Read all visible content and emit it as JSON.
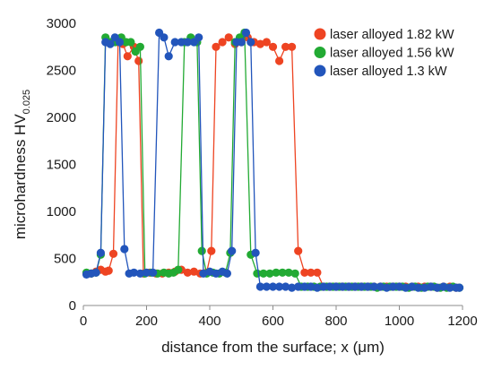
{
  "chart_data": {
    "type": "scatter",
    "connected": true,
    "title": "",
    "xlabel": "distance from the surface; x (μm)",
    "ylabel_main": "microhardness HV",
    "ylabel_subscript": "0.025",
    "xlim": [
      0,
      1200
    ],
    "ylim": [
      0,
      3000
    ],
    "xticks": [
      "0",
      "200",
      "400",
      "600",
      "800",
      "1000",
      "1200"
    ],
    "yticks": [
      "0",
      "500",
      "1000",
      "1500",
      "2000",
      "2500",
      "3000"
    ],
    "grid": "none",
    "legend_position": "top-right",
    "series": [
      {
        "name": "laser alloyed 1.82 kW",
        "color": "#ee4422",
        "x": [
          10,
          25,
          40,
          55,
          70,
          80,
          95,
          110,
          125,
          140,
          160,
          175,
          190,
          210,
          230,
          250,
          270,
          290,
          310,
          330,
          350,
          370,
          390,
          405,
          420,
          440,
          460,
          480,
          500,
          520,
          540,
          560,
          580,
          600,
          620,
          640,
          660,
          680,
          700,
          720,
          740,
          760,
          780,
          800,
          820,
          840,
          860,
          880,
          900,
          920,
          940,
          960,
          980,
          1000,
          1020,
          1040,
          1060,
          1080,
          1100,
          1120,
          1140,
          1160,
          1180
        ],
        "y": [
          340,
          340,
          360,
          380,
          360,
          370,
          550,
          2800,
          2780,
          2650,
          2750,
          2600,
          340,
          350,
          340,
          340,
          350,
          360,
          380,
          350,
          360,
          340,
          350,
          580,
          2750,
          2800,
          2850,
          2780,
          2800,
          2850,
          2800,
          2780,
          2800,
          2750,
          2600,
          2750,
          2750,
          580,
          350,
          350,
          350,
          200,
          200,
          200,
          200,
          200,
          200,
          200,
          200,
          200,
          200,
          200,
          200,
          200,
          200,
          200,
          200,
          200,
          200,
          190,
          200,
          200,
          190
        ]
      },
      {
        "name": "laser alloyed 1.56 kW",
        "color": "#22aa33",
        "x": [
          10,
          25,
          40,
          55,
          70,
          85,
          100,
          120,
          135,
          150,
          165,
          180,
          195,
          215,
          235,
          255,
          270,
          285,
          300,
          320,
          340,
          360,
          375,
          390,
          410,
          430,
          450,
          465,
          480,
          495,
          510,
          530,
          550,
          570,
          590,
          610,
          630,
          650,
          670,
          690,
          710,
          730,
          750,
          770,
          790,
          810,
          830,
          850,
          870,
          890,
          910,
          930,
          950,
          970,
          990,
          1010,
          1030,
          1050,
          1070,
          1090,
          1110,
          1130,
          1150,
          1170,
          1190
        ],
        "y": [
          350,
          340,
          350,
          540,
          2850,
          2800,
          2800,
          2850,
          2800,
          2800,
          2700,
          2750,
          340,
          350,
          340,
          350,
          340,
          350,
          380,
          2800,
          2850,
          2800,
          580,
          340,
          350,
          340,
          350,
          560,
          2800,
          2850,
          2900,
          540,
          340,
          340,
          340,
          350,
          350,
          350,
          340,
          200,
          200,
          200,
          200,
          200,
          200,
          200,
          200,
          200,
          200,
          200,
          200,
          190,
          200,
          200,
          200,
          200,
          190,
          200,
          190,
          200,
          200,
          190,
          190,
          200,
          190
        ]
      },
      {
        "name": "laser alloyed 1.3 kW",
        "color": "#2255bb",
        "x": [
          10,
          25,
          40,
          55,
          70,
          85,
          100,
          115,
          130,
          145,
          160,
          180,
          200,
          220,
          240,
          255,
          270,
          290,
          310,
          330,
          350,
          365,
          380,
          400,
          420,
          440,
          455,
          470,
          485,
          500,
          515,
          530,
          545,
          560,
          580,
          600,
          620,
          640,
          660,
          680,
          700,
          720,
          740,
          760,
          780,
          800,
          820,
          840,
          860,
          880,
          900,
          920,
          940,
          960,
          980,
          1000,
          1020,
          1040,
          1060,
          1080,
          1100,
          1120,
          1140,
          1160,
          1180,
          1190
        ],
        "y": [
          330,
          340,
          350,
          560,
          2800,
          2780,
          2850,
          2800,
          600,
          340,
          350,
          340,
          350,
          350,
          2900,
          2850,
          2650,
          2800,
          2800,
          2800,
          2800,
          2850,
          340,
          360,
          340,
          360,
          340,
          580,
          2800,
          2800,
          2900,
          2800,
          560,
          200,
          200,
          200,
          200,
          200,
          190,
          200,
          200,
          200,
          190,
          200,
          200,
          200,
          200,
          200,
          200,
          200,
          200,
          200,
          200,
          190,
          200,
          200,
          190,
          200,
          190,
          190,
          200,
          190,
          200,
          190,
          190,
          190
        ]
      }
    ]
  }
}
